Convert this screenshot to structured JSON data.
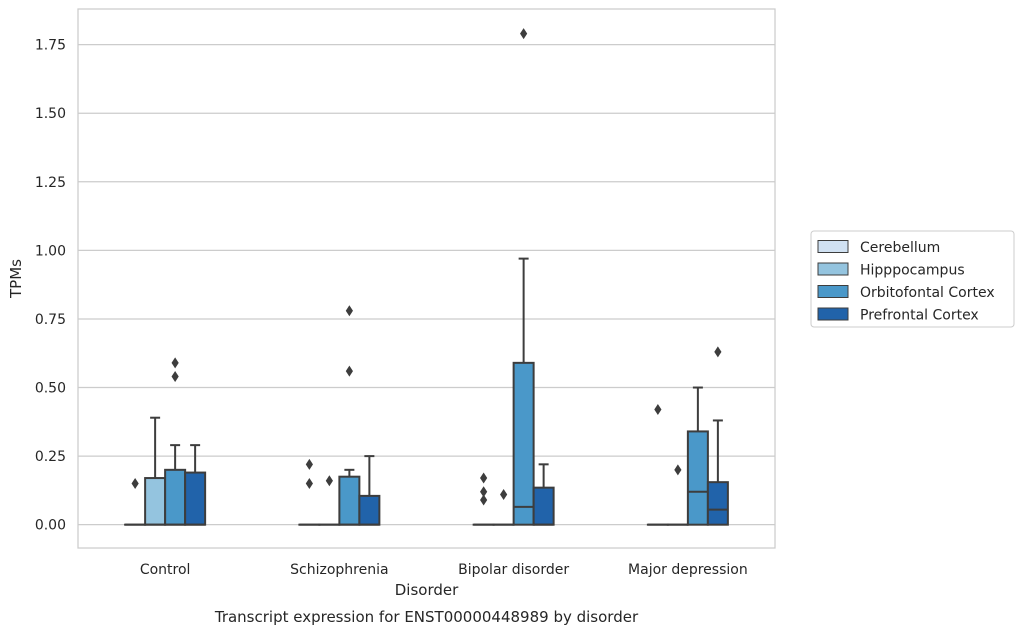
{
  "chart_data": {
    "type": "box",
    "caption": "Transcript expression for ENST00000448989 by disorder",
    "xlabel": "Disorder",
    "ylabel": "TPMs",
    "ylim": [
      -0.085,
      1.88
    ],
    "yticks": [
      0.0,
      0.25,
      0.5,
      0.75,
      1.0,
      1.25,
      1.5,
      1.75
    ],
    "ytick_labels": [
      "0.00",
      "0.25",
      "0.50",
      "0.75",
      "1.00",
      "1.25",
      "1.50",
      "1.75"
    ],
    "grid": "horizontal",
    "legend_position": "right-outside",
    "categories": [
      "Control",
      "Schizophrenia",
      "Bipolar disorder",
      "Major depression"
    ],
    "series": [
      {
        "name": "Cerebellum",
        "color": "#d0e1f2",
        "boxes": [
          {
            "whislo": 0,
            "q1": 0,
            "med": 0,
            "q3": 0,
            "whishi": 0,
            "fliers": [
              0.15
            ]
          },
          {
            "whislo": 0,
            "q1": 0,
            "med": 0,
            "q3": 0,
            "whishi": 0,
            "fliers": [
              0.15,
              0.22
            ]
          },
          {
            "whislo": 0,
            "q1": 0,
            "med": 0,
            "q3": 0,
            "whishi": 0,
            "fliers": [
              0.09,
              0.12,
              0.17
            ]
          },
          {
            "whislo": 0,
            "q1": 0,
            "med": 0,
            "q3": 0,
            "whishi": 0,
            "fliers": [
              0.42
            ]
          }
        ]
      },
      {
        "name": "Hipppocampus",
        "color": "#94c4df",
        "boxes": [
          {
            "whislo": 0,
            "q1": 0,
            "med": 0,
            "q3": 0.17,
            "whishi": 0.39,
            "fliers": []
          },
          {
            "whislo": 0,
            "q1": 0,
            "med": 0,
            "q3": 0,
            "whishi": 0,
            "fliers": [
              0.16
            ]
          },
          {
            "whislo": 0,
            "q1": 0,
            "med": 0,
            "q3": 0,
            "whishi": 0,
            "fliers": [
              0.11
            ]
          },
          {
            "whislo": 0,
            "q1": 0,
            "med": 0,
            "q3": 0,
            "whishi": 0,
            "fliers": [
              0.2
            ]
          }
        ]
      },
      {
        "name": "Orbitofontal Cortex",
        "color": "#4a98c9",
        "boxes": [
          {
            "whislo": 0,
            "q1": 0,
            "med": 0,
            "q3": 0.2,
            "whishi": 0.29,
            "fliers": [
              0.54,
              0.59
            ]
          },
          {
            "whislo": 0,
            "q1": 0,
            "med": 0,
            "q3": 0.175,
            "whishi": 0.2,
            "fliers": [
              0.56,
              0.78
            ]
          },
          {
            "whislo": 0,
            "q1": 0,
            "med": 0.065,
            "q3": 0.59,
            "whishi": 0.97,
            "fliers": [
              1.79
            ]
          },
          {
            "whislo": 0,
            "q1": 0,
            "med": 0.12,
            "q3": 0.34,
            "whishi": 0.5,
            "fliers": []
          }
        ]
      },
      {
        "name": "Prefrontal Cortex",
        "color": "#2163aa",
        "boxes": [
          {
            "whislo": 0,
            "q1": 0,
            "med": 0,
            "q3": 0.19,
            "whishi": 0.29,
            "fliers": []
          },
          {
            "whislo": 0,
            "q1": 0,
            "med": 0,
            "q3": 0.105,
            "whishi": 0.25,
            "fliers": []
          },
          {
            "whislo": 0,
            "q1": 0,
            "med": 0,
            "q3": 0.135,
            "whishi": 0.22,
            "fliers": []
          },
          {
            "whislo": 0,
            "q1": 0,
            "med": 0.055,
            "q3": 0.155,
            "whishi": 0.38,
            "fliers": [
              0.63
            ]
          }
        ]
      }
    ]
  }
}
